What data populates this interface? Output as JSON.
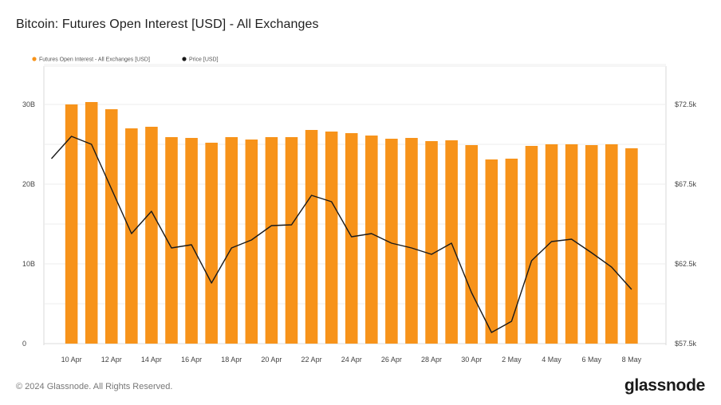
{
  "title": "Bitcoin: Futures Open Interest [USD] - All Exchanges",
  "footer": {
    "copyright": "© 2024 Glassnode. All Rights Reserved.",
    "brand": "glassnode"
  },
  "colors": {
    "bar": "#f7931a",
    "price": "#1a1a1a",
    "grid": "#ececec"
  },
  "chart_data": {
    "type": "bar",
    "title": "Bitcoin: Futures Open Interest [USD] - All Exchanges",
    "x": [
      "9 Apr",
      "10 Apr",
      "11 Apr",
      "12 Apr",
      "13 Apr",
      "14 Apr",
      "15 Apr",
      "16 Apr",
      "17 Apr",
      "18 Apr",
      "19 Apr",
      "20 Apr",
      "21 Apr",
      "22 Apr",
      "23 Apr",
      "24 Apr",
      "25 Apr",
      "26 Apr",
      "27 Apr",
      "28 Apr",
      "29 Apr",
      "30 Apr",
      "1 May",
      "2 May",
      "3 May",
      "4 May",
      "5 May",
      "6 May",
      "7 May",
      "8 May"
    ],
    "x_tick_labels": [
      "10 Apr",
      "12 Apr",
      "14 Apr",
      "16 Apr",
      "18 Apr",
      "20 Apr",
      "22 Apr",
      "24 Apr",
      "26 Apr",
      "28 Apr",
      "30 Apr",
      "2 May",
      "4 May",
      "6 May",
      "8 May"
    ],
    "series": [
      {
        "name": "Futures Open Interest - All Exchanges [USD]",
        "axis": "left",
        "kind": "bar",
        "values": [
          null,
          30.0,
          30.3,
          29.4,
          27.0,
          27.2,
          25.9,
          25.8,
          25.2,
          25.9,
          25.6,
          25.9,
          25.9,
          26.8,
          26.6,
          26.4,
          26.1,
          25.7,
          25.8,
          25.4,
          25.5,
          24.9,
          23.1,
          23.2,
          24.8,
          25.0,
          25.0,
          24.9,
          25.0,
          24.5
        ]
      },
      {
        "name": "Price [USD]",
        "axis": "right",
        "kind": "line",
        "values": [
          69100,
          70500,
          70000,
          67200,
          64400,
          65800,
          63500,
          63700,
          61300,
          63500,
          64000,
          64900,
          64950,
          66800,
          66400,
          64200,
          64400,
          63800,
          63500,
          63100,
          63800,
          60700,
          58200,
          58900,
          62700,
          63900,
          64050,
          63200,
          62300,
          60900
        ]
      }
    ],
    "y_left": {
      "ticks": [
        "0",
        "10B",
        "20B",
        "30B"
      ],
      "ylim": [
        0,
        30
      ],
      "unit": "B USD"
    },
    "y_right": {
      "ticks": [
        "$57.5k",
        "$62.5k",
        "$67.5k",
        "$72.5k"
      ],
      "ylim": [
        57500,
        72500
      ]
    },
    "legend_position": "top-left",
    "grid": true
  }
}
